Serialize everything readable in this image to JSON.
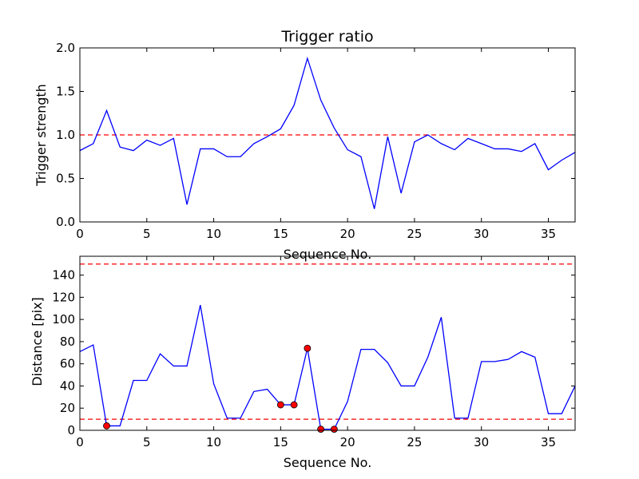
{
  "chart_data": [
    {
      "type": "line",
      "title": "Trigger ratio",
      "xlabel": "Sequence No.",
      "ylabel": "Trigger strength",
      "xlim": [
        0,
        37
      ],
      "ylim": [
        0,
        2.0
      ],
      "xticks": [
        "0",
        "5",
        "10",
        "15",
        "20",
        "25",
        "30",
        "35"
      ],
      "yticks": [
        "0.0",
        "0.5",
        "1.0",
        "1.5",
        "2.0"
      ],
      "series": [
        {
          "name": "trigger strength",
          "color": "#0000ff",
          "x": [
            0,
            1,
            2,
            3,
            4,
            5,
            6,
            7,
            8,
            9,
            10,
            11,
            12,
            13,
            14,
            15,
            16,
            17,
            18,
            19,
            20,
            21,
            22,
            23,
            24,
            25,
            26,
            27,
            28,
            29,
            30,
            31,
            32,
            33,
            34,
            35,
            36,
            37
          ],
          "y": [
            0.82,
            0.9,
            1.28,
            0.86,
            0.82,
            0.94,
            0.88,
            0.96,
            0.2,
            0.84,
            0.84,
            0.75,
            0.75,
            0.9,
            0.98,
            1.07,
            1.34,
            1.88,
            1.4,
            1.08,
            0.83,
            0.75,
            0.15,
            0.98,
            0.33,
            0.92,
            1.0,
            0.9,
            0.83,
            0.96,
            0.9,
            0.84,
            0.84,
            0.81,
            0.9,
            0.6,
            0.71,
            0.8
          ]
        }
      ],
      "reference_lines": [
        {
          "y": 1.0,
          "color": "#ff0000",
          "style": "dashed"
        }
      ]
    },
    {
      "type": "line",
      "title": "",
      "xlabel": "Sequence No.",
      "ylabel": "Distance [pix]",
      "xlim": [
        0,
        37
      ],
      "ylim": [
        0,
        157
      ],
      "xticks": [
        "0",
        "5",
        "10",
        "15",
        "20",
        "25",
        "30",
        "35"
      ],
      "yticks": [
        "0",
        "20",
        "40",
        "60",
        "80",
        "100",
        "120",
        "140"
      ],
      "series": [
        {
          "name": "distance",
          "color": "#0000ff",
          "x": [
            0,
            1,
            2,
            3,
            4,
            5,
            6,
            7,
            8,
            9,
            10,
            11,
            12,
            13,
            14,
            15,
            16,
            17,
            18,
            19,
            20,
            21,
            22,
            23,
            24,
            25,
            26,
            27,
            28,
            29,
            30,
            31,
            32,
            33,
            34,
            35,
            36,
            37
          ],
          "y": [
            71,
            77,
            4,
            4,
            45,
            45,
            69,
            58,
            58,
            113,
            42,
            11,
            11,
            35,
            37,
            23,
            23,
            74,
            1,
            1,
            26,
            73,
            73,
            61,
            40,
            40,
            66,
            102,
            11,
            11,
            62,
            62,
            64,
            71,
            66,
            15,
            15,
            40
          ]
        }
      ],
      "markers": {
        "color": "#ff0000",
        "points": [
          {
            "x": 2,
            "y": 4
          },
          {
            "x": 15,
            "y": 23
          },
          {
            "x": 16,
            "y": 23
          },
          {
            "x": 17,
            "y": 74
          },
          {
            "x": 18,
            "y": 1
          },
          {
            "x": 19,
            "y": 1
          }
        ]
      },
      "reference_lines": [
        {
          "y": 150,
          "color": "#ff0000",
          "style": "dashed"
        },
        {
          "y": 10,
          "color": "#ff0000",
          "style": "dashed"
        }
      ]
    }
  ]
}
